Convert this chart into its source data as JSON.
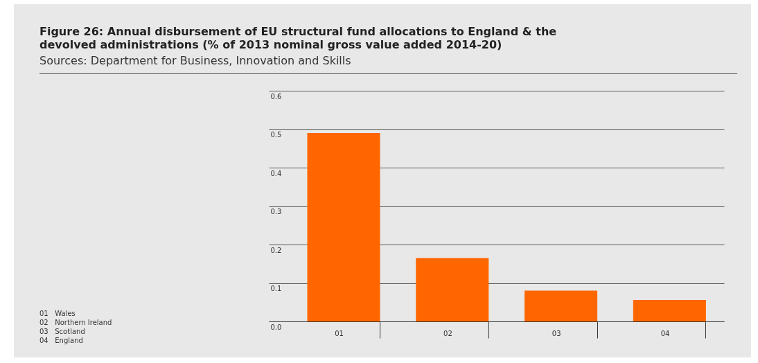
{
  "chart_data": {
    "type": "bar",
    "title": "Figure 26: Annual disbursement of EU structural fund allocations to England & the devolved administrations (% of 2013 nominal gross value added 2014-20)",
    "subtitle": "Sources: Department for Business, Innovation and Skills",
    "categories": [
      "01",
      "02",
      "03",
      "04"
    ],
    "values": [
      0.49,
      0.165,
      0.08,
      0.056
    ],
    "color": "#ff6600",
    "ylim": [
      0,
      0.6
    ],
    "yticks": [
      {
        "value": 0,
        "label": "0.0"
      },
      0.1,
      0.2,
      0.3,
      0.4,
      0.5,
      0.6
    ],
    "grid": "y",
    "annotations": [
      "01   Wales",
      "02   Northern Ireland",
      "03   Scotland",
      "04   England"
    ]
  }
}
